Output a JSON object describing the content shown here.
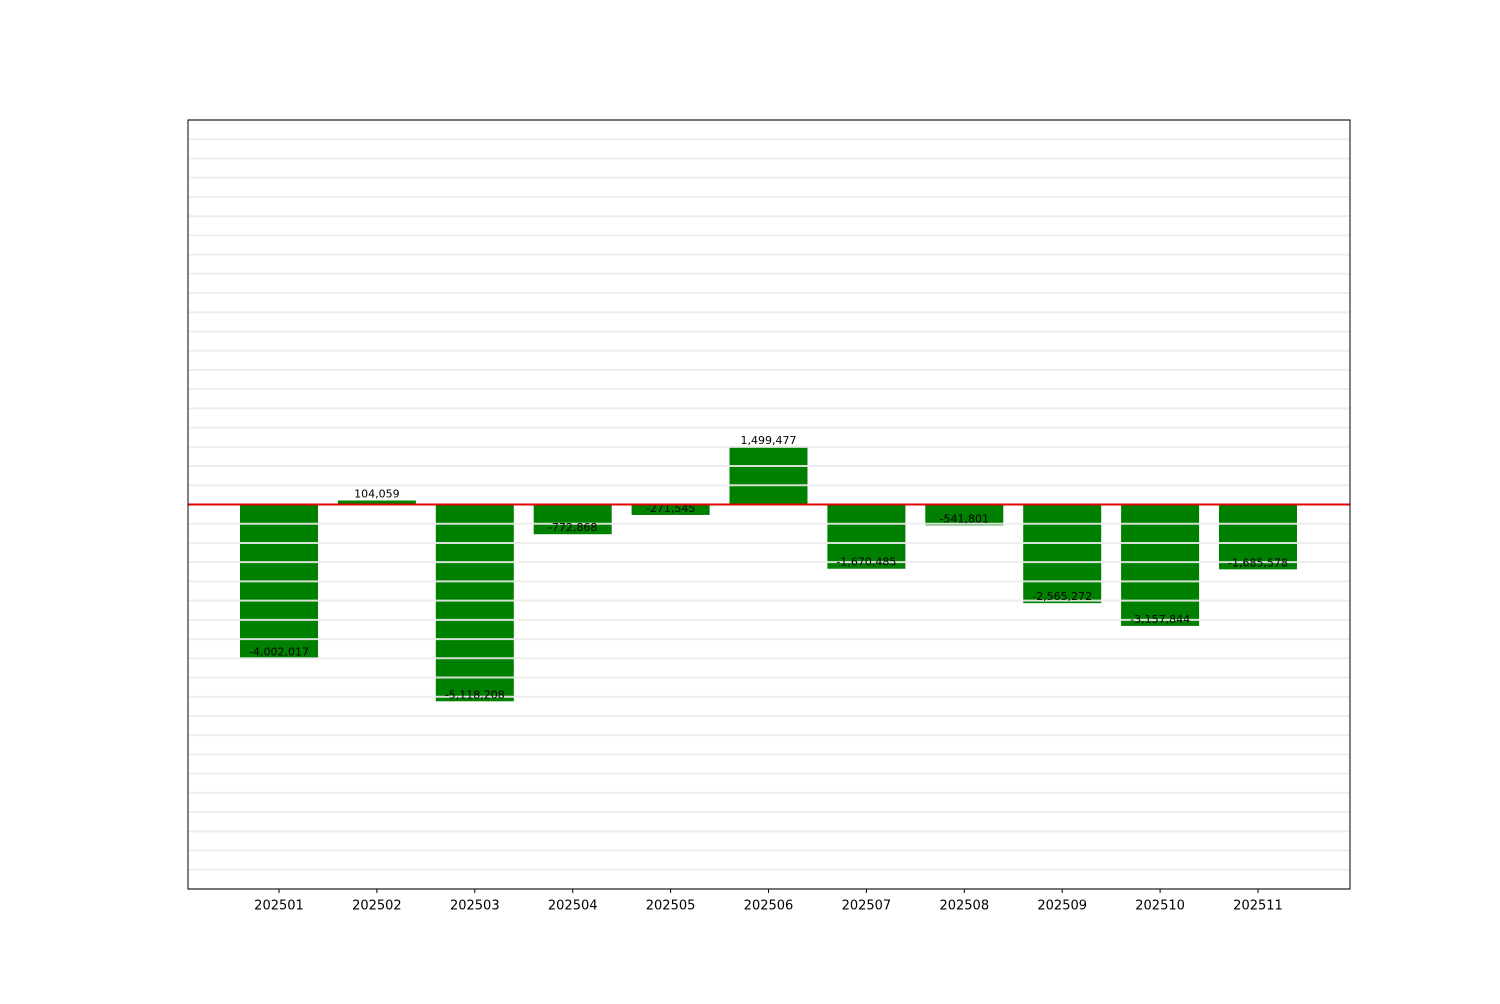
{
  "chart_data": {
    "type": "bar",
    "categories": [
      "202501",
      "202502",
      "202503",
      "202504",
      "202505",
      "202506",
      "202507",
      "202508",
      "202509",
      "202510",
      "202511"
    ],
    "values": [
      -4002017,
      104059,
      -5118208,
      -772868,
      -271545,
      1499477,
      -1670485,
      -541801,
      -2565272,
      -3157844,
      -1685578
    ],
    "value_labels": [
      "-4,002,017",
      "104,059",
      "-5,118,208",
      "-772,868",
      "-271,545",
      "1,499,477",
      "-1,670,485",
      "-541,801",
      "-2,565,272",
      "-3,157,844",
      "-1,685,578"
    ],
    "color": "#008000",
    "ylim": [
      -10000000,
      10000000
    ],
    "yticks": [
      -10000000,
      -9500000,
      -9000000,
      -8500000,
      -8000000,
      -7500000,
      -7000000,
      -6500000,
      -6000000,
      -5500000,
      -5000000,
      -4500000,
      -4000000,
      -3500000,
      -3000000,
      -2500000,
      -2000000,
      -1500000,
      -1000000,
      -500000,
      0,
      500000,
      1000000,
      1500000,
      2000000,
      2500000,
      3000000,
      3500000,
      4000000,
      4500000,
      5000000,
      5500000,
      6000000,
      6500000,
      7000000,
      7500000,
      8000000,
      8500000,
      9000000,
      9500000,
      10000000
    ],
    "ytick_labels_visible": false,
    "grid": true,
    "reference_line": {
      "value": 0,
      "color": "#e00000"
    }
  }
}
